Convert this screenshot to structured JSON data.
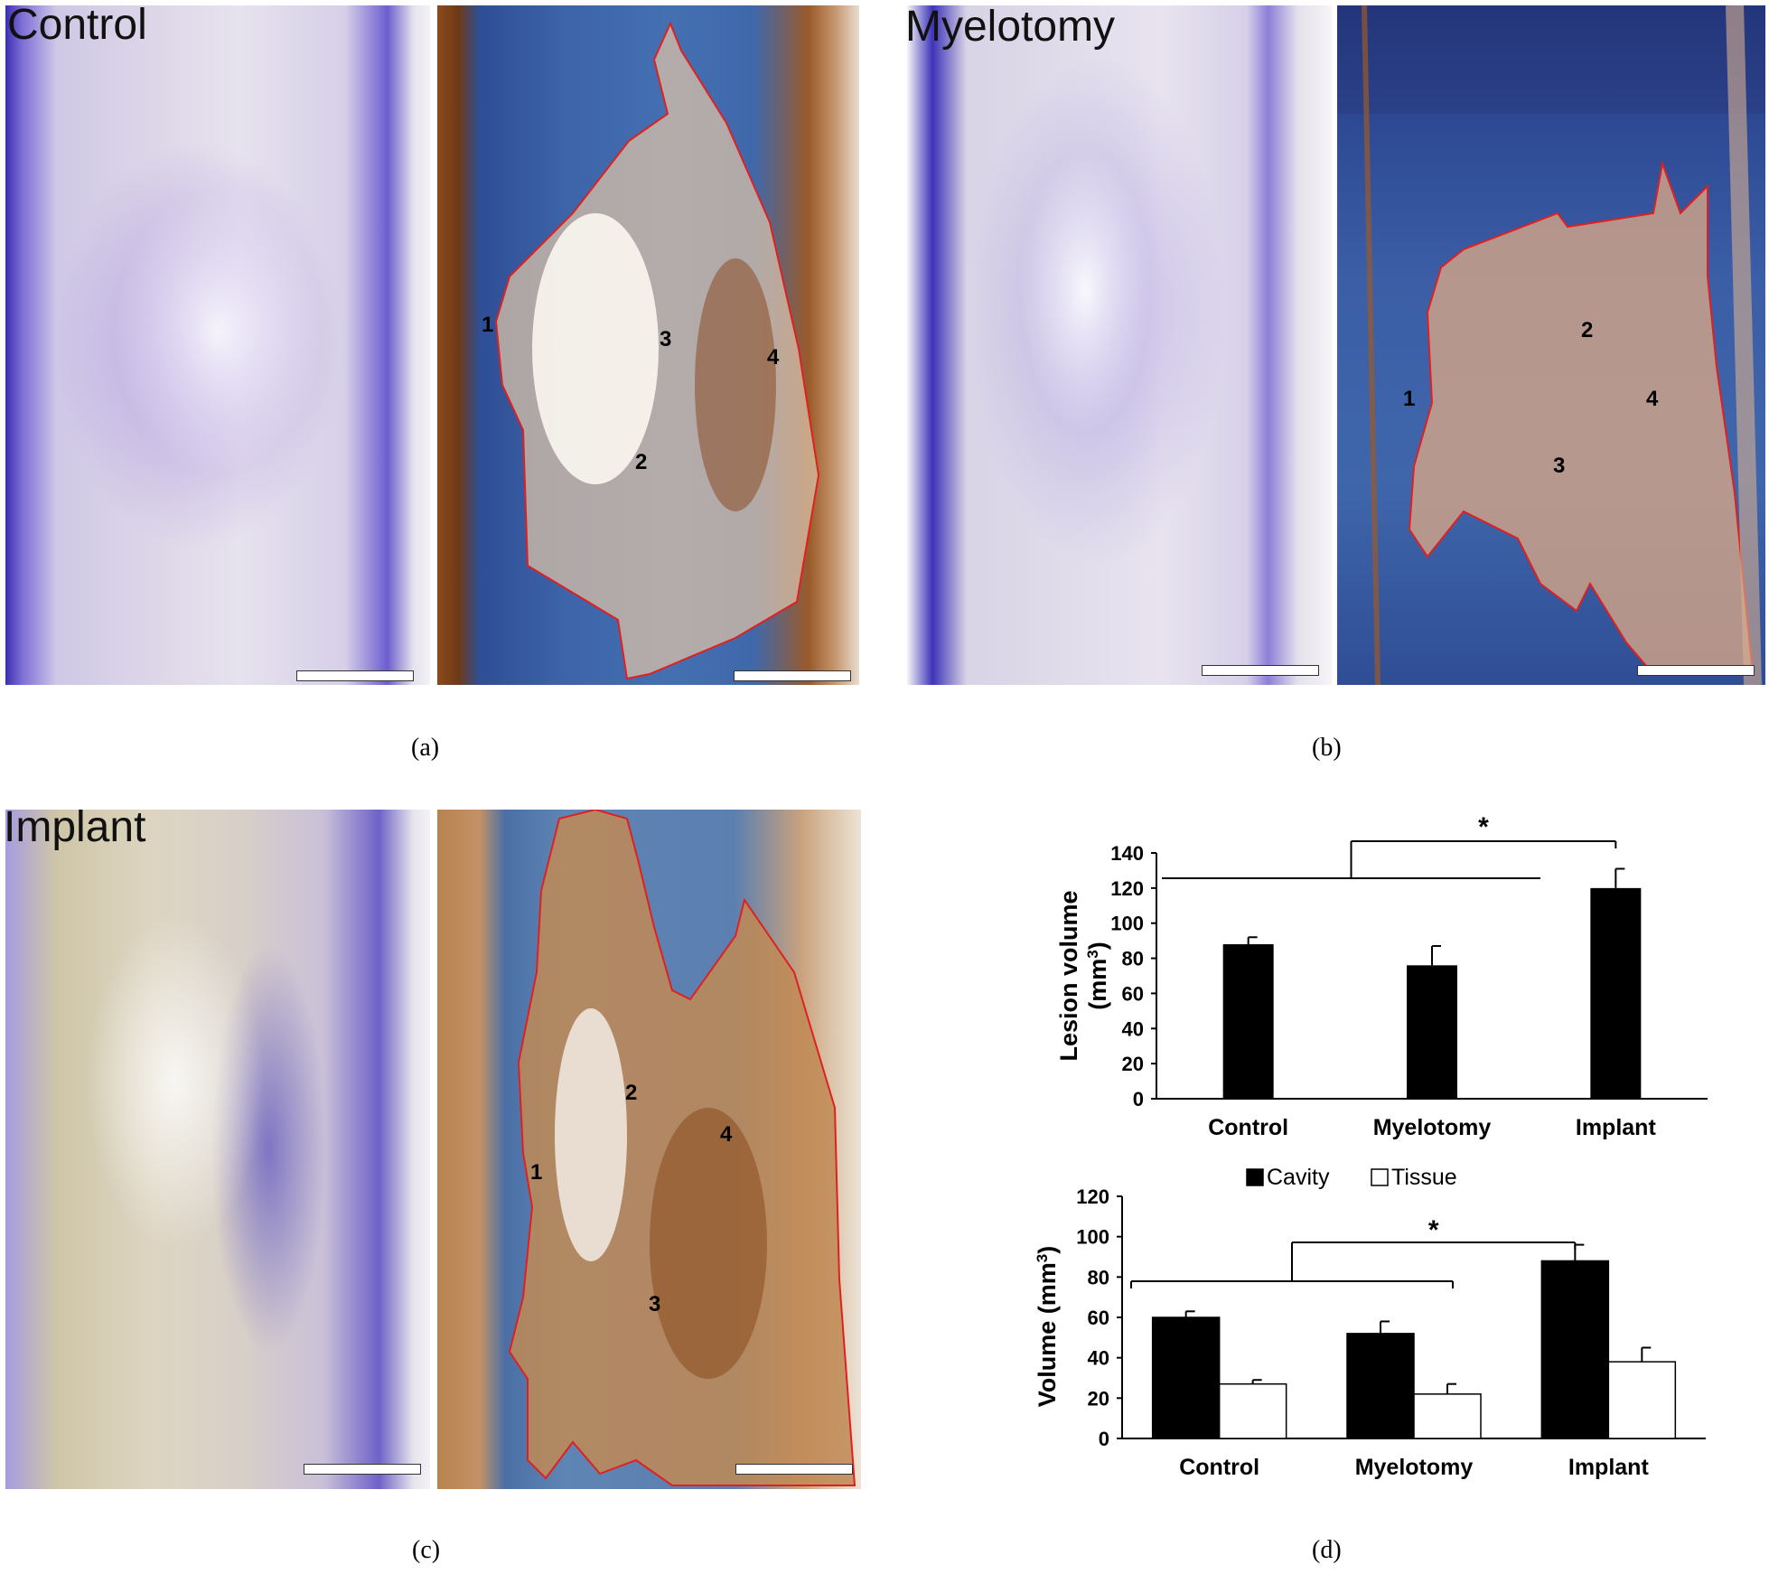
{
  "panels": {
    "a": {
      "label": "Control",
      "caption": "(a)",
      "regions": [
        "1",
        "2",
        "3",
        "4"
      ]
    },
    "b": {
      "label": "Myelotomy",
      "caption": "(b)",
      "regions": [
        "1",
        "2",
        "3",
        "4"
      ]
    },
    "c": {
      "label": "Implant",
      "caption": "(c)",
      "regions": [
        "1",
        "2",
        "3",
        "4"
      ]
    },
    "d": {
      "caption": "(d)"
    }
  },
  "colors": {
    "bar_fill": "#000000",
    "tissue_fill": "#ffffff",
    "lesion_outline": "#e02020",
    "nissl_stain": "#6a5acd",
    "ihc_stain": "#3a5fa3"
  },
  "chart_data": [
    {
      "type": "bar",
      "categories": [
        "Control",
        "Myelotomy",
        "Implant"
      ],
      "values": [
        88,
        76,
        120
      ],
      "errors": [
        4,
        11,
        11
      ],
      "ylabel": "Lesion volume (mm3)",
      "ylim": [
        0,
        140
      ],
      "yticks": [
        "0",
        "20",
        "40",
        "60",
        "80",
        "100",
        "120",
        "140"
      ],
      "significance": "*",
      "grid": false
    },
    {
      "type": "bar",
      "categories": [
        "Control",
        "Myelotomy",
        "Implant"
      ],
      "series": [
        {
          "name": "Cavity",
          "values": [
            60,
            52,
            88
          ],
          "errors": [
            3,
            6,
            8
          ]
        },
        {
          "name": "Tissue",
          "values": [
            27,
            22,
            38
          ],
          "errors": [
            2,
            5,
            7
          ]
        }
      ],
      "ylabel": "Volume (mm3)",
      "ylim": [
        0,
        120
      ],
      "yticks": [
        "0",
        "20",
        "40",
        "60",
        "80",
        "100",
        "120"
      ],
      "legend": "top",
      "significance": "*",
      "grid": false
    }
  ]
}
